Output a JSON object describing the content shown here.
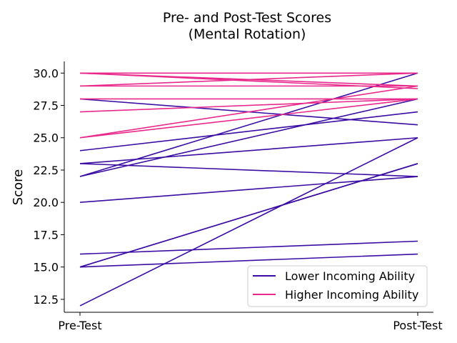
{
  "chart_data": {
    "type": "line",
    "title": "Pre- and Post-Test Scores",
    "subtitle": "(Mental Rotation)",
    "xlabel": "",
    "ylabel": "Score",
    "categories": [
      "Pre-Test",
      "Post-Test"
    ],
    "ylim": [
      11.5,
      30.9
    ],
    "yticks": [
      12.5,
      15.0,
      17.5,
      20.0,
      22.5,
      25.0,
      27.5,
      30.0
    ],
    "grid": false,
    "legend_position": "bottom-right",
    "groups": [
      {
        "name": "Lower Incoming Ability",
        "color": "#3a0ca3",
        "lines": [
          [
            12,
            25
          ],
          [
            15,
            23
          ],
          [
            15,
            23
          ],
          [
            15,
            16
          ],
          [
            16,
            17
          ],
          [
            20,
            22
          ],
          [
            22,
            28
          ],
          [
            22,
            30
          ],
          [
            23,
            25
          ],
          [
            23,
            22
          ],
          [
            24,
            27
          ],
          [
            28,
            26
          ]
        ]
      },
      {
        "name": "Higher Incoming Ability",
        "color": "#e8298b",
        "lines": [
          [
            25,
            28
          ],
          [
            25,
            29
          ],
          [
            27,
            28
          ],
          [
            28,
            28
          ],
          [
            29,
            29
          ],
          [
            29,
            30
          ],
          [
            30,
            29
          ],
          [
            30,
            30
          ],
          [
            30,
            28.8
          ]
        ]
      }
    ]
  }
}
